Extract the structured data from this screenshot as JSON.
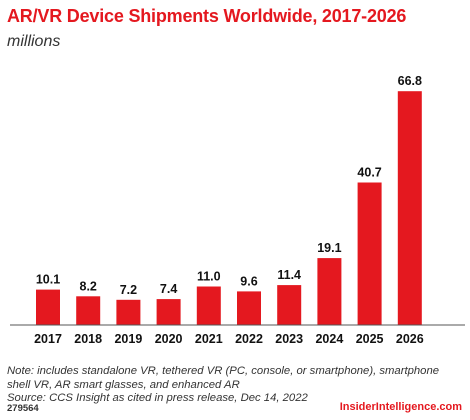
{
  "header": {
    "title": "AR/VR Device Shipments Worldwide, 2017-2026",
    "subtitle": "millions"
  },
  "chart_data": {
    "type": "bar",
    "title": "AR/VR Device Shipments Worldwide, 2017-2026",
    "subtitle": "millions",
    "categories": [
      "2017",
      "2018",
      "2019",
      "2020",
      "2021",
      "2022",
      "2023",
      "2024",
      "2025",
      "2026"
    ],
    "values": [
      10.1,
      8.2,
      7.2,
      7.4,
      11.0,
      9.6,
      11.4,
      19.1,
      40.7,
      66.8
    ],
    "value_labels": [
      "10.1",
      "8.2",
      "7.2",
      "7.4",
      "11.0",
      "9.6",
      "11.4",
      "19.1",
      "40.7",
      "66.8"
    ],
    "xlabel": "",
    "ylabel": "",
    "ylim": [
      0,
      70
    ],
    "grid": false,
    "bar_color": "#e4181f"
  },
  "footer": {
    "note": "Note: includes standalone VR, tethered VR (PC, console, or smartphone), smartphone shell VR, AR smart glasses, and enhanced AR",
    "source": "Source: CCS Insight as cited in press release, Dec 14, 2022",
    "chart_id": "279564",
    "brand": "InsiderIntelligence.com"
  }
}
